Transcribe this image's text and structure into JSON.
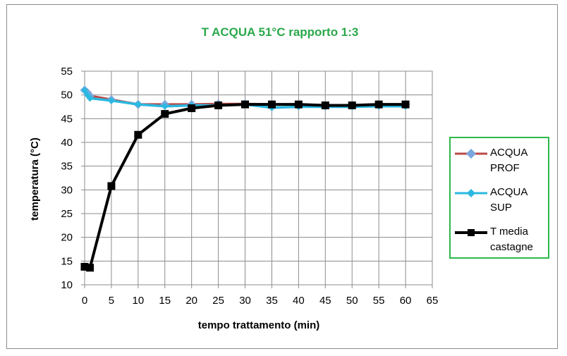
{
  "chart_data": {
    "type": "line",
    "title": "T ACQUA 51°C rapporto 1:3",
    "xlabel": "tempo trattamento (min)",
    "ylabel": "temperatura (°C)",
    "xlim": [
      0,
      65
    ],
    "ylim": [
      10,
      55
    ],
    "xticks": [
      "0",
      "5",
      "10",
      "15",
      "20",
      "25",
      "30",
      "35",
      "40",
      "45",
      "50",
      "55",
      "60",
      "65"
    ],
    "yticks": [
      "10",
      "15",
      "20",
      "25",
      "30",
      "35",
      "40",
      "45",
      "50",
      "55"
    ],
    "grid": true,
    "legend_position": "right",
    "title_color": "#2aa84a",
    "series": [
      {
        "name": "ACQUA PROF",
        "color": "#b94a48",
        "marker_color": "#7ba6dd",
        "marker": "diamond",
        "x": [
          0,
          0.5,
          1,
          5,
          10,
          15,
          20,
          25,
          30,
          35,
          40,
          45,
          50,
          55,
          60
        ],
        "y": [
          51,
          50.5,
          49.8,
          49,
          48,
          48,
          48,
          48.1,
          48.1,
          48,
          48,
          47.8,
          47.8,
          48,
          48
        ]
      },
      {
        "name": "ACQUA SUP",
        "color": "#2ab8e0",
        "marker_color": "#2ab8e0",
        "marker": "diamond",
        "x": [
          0,
          0.5,
          1,
          5,
          10,
          15,
          20,
          25,
          30,
          35,
          40,
          45,
          50,
          55,
          60
        ],
        "y": [
          51,
          50,
          49.3,
          48.8,
          48,
          47.6,
          47.8,
          47.8,
          48,
          47.3,
          47.5,
          47.5,
          47.5,
          47.6,
          47.6
        ]
      },
      {
        "name": "T media castagne",
        "color": "#000000",
        "marker_color": "#000000",
        "marker": "square",
        "x": [
          0,
          1,
          5,
          10,
          15,
          20,
          25,
          30,
          35,
          40,
          45,
          50,
          55,
          60
        ],
        "y": [
          13.8,
          13.6,
          30.8,
          41.6,
          46,
          47.2,
          47.8,
          48,
          48,
          48,
          47.8,
          47.8,
          48,
          48
        ]
      }
    ],
    "legend": [
      {
        "line1": "ACQUA",
        "line2": "PROF"
      },
      {
        "line1": "ACQUA",
        "line2": "SUP"
      },
      {
        "line1": "T media",
        "line2": "castagne"
      }
    ]
  }
}
